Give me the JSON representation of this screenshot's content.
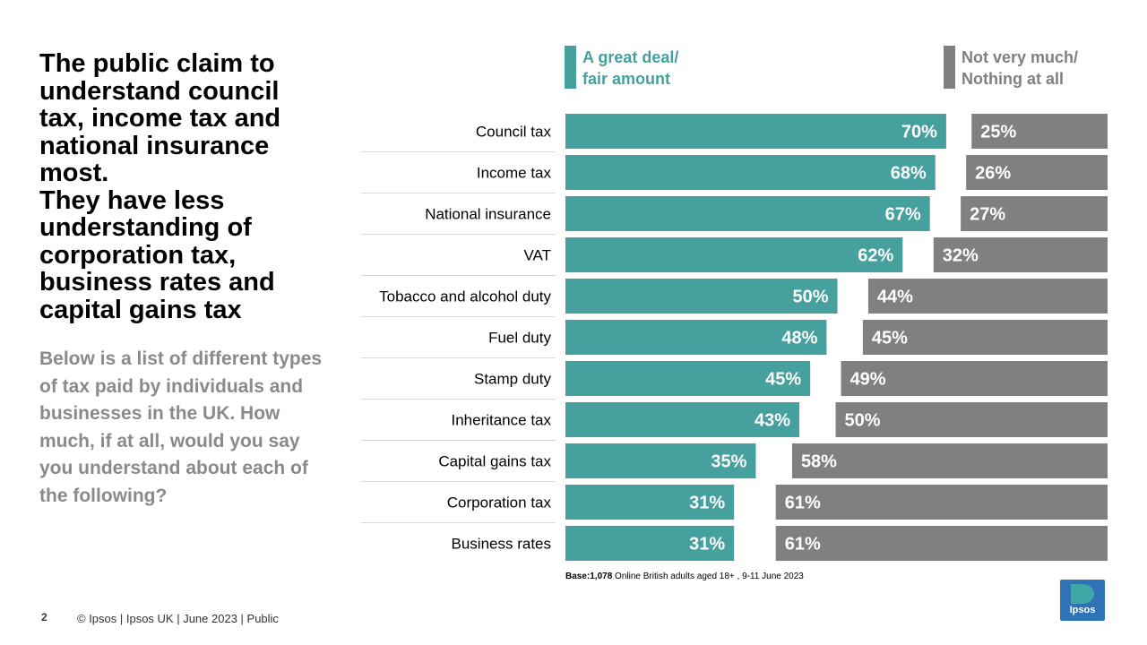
{
  "headline": {
    "lines": [
      "The public claim to",
      "understand council",
      "tax, income tax and",
      "national insurance",
      "most.",
      "They have less",
      "understanding of",
      "corporation tax,",
      "business rates and",
      "capital gains tax"
    ]
  },
  "question": "Below is a list of different types of tax paid by individuals and businesses in the UK. How much, if at all, would you say you understand about each of the following?",
  "legend": {
    "positive": {
      "line1": "A great deal/",
      "line2": "fair amount",
      "color": "#45a09e"
    },
    "negative": {
      "line1": "Not very much/",
      "line2": "Nothing at all",
      "color": "#808080"
    }
  },
  "chart_data": {
    "type": "bar",
    "orientation": "horizontal",
    "layout": "diverging-split",
    "categories": [
      "Council tax",
      "Income tax",
      "National insurance",
      "VAT",
      "Tobacco and alcohol duty",
      "Fuel duty",
      "Stamp duty",
      "Inheritance tax",
      "Capital gains tax",
      "Corporation tax",
      "Business rates"
    ],
    "series": [
      {
        "name": "A great deal/ fair amount",
        "values": [
          70,
          68,
          67,
          62,
          50,
          48,
          45,
          43,
          35,
          31,
          31
        ],
        "color": "#45a09e"
      },
      {
        "name": "Not very much/ Nothing at all",
        "values": [
          25,
          26,
          27,
          32,
          44,
          45,
          49,
          50,
          58,
          61,
          61
        ],
        "color": "#808080"
      }
    ],
    "value_format": "{v}%",
    "xlim": [
      0,
      100
    ],
    "title": "",
    "xlabel": "",
    "ylabel": ""
  },
  "base": {
    "label": "Base:",
    "count": "1,078",
    "description": " Online British adults aged 18+ , 9-11 June 2023"
  },
  "footer": {
    "page_number": "2",
    "text": "© Ipsos |  Ipsos UK | June  2023 | Public"
  },
  "logo": {
    "text": "Ipsos"
  }
}
